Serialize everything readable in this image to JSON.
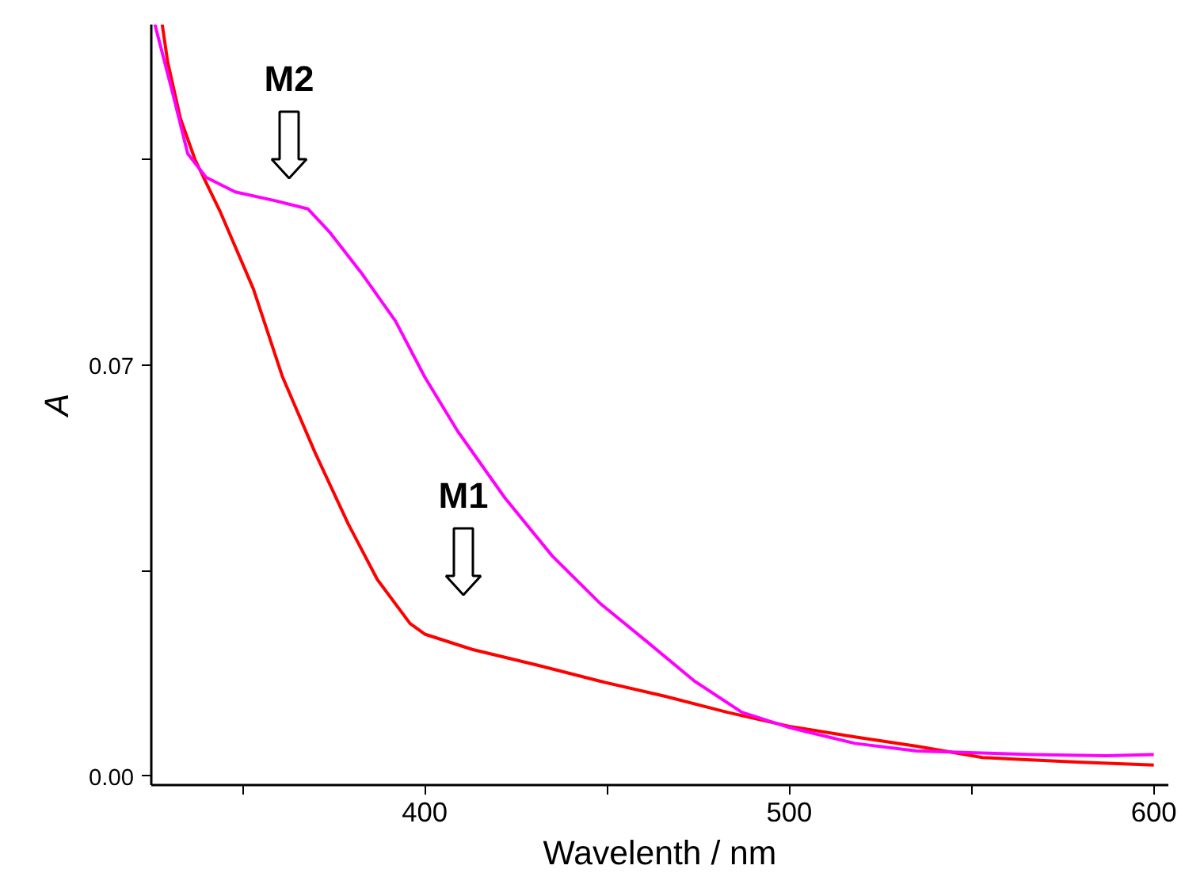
{
  "chart_data": {
    "type": "line",
    "xlabel": "Wavelenth / nm",
    "ylabel": "A",
    "xlim": [
      325,
      604
    ],
    "ylim": [
      -0.0015,
      0.128
    ],
    "xticks": [
      {
        "value": 350,
        "label": null
      },
      400,
      {
        "value": 450,
        "label": null
      },
      500,
      {
        "value": 550,
        "label": null
      },
      600
    ],
    "yticks": [
      {
        "value": 0,
        "label": "0.00"
      },
      {
        "value": 0.035,
        "label": null
      },
      0.07,
      {
        "value": 0.105,
        "label": null
      }
    ],
    "grid": false,
    "marker": "none",
    "line_style": "solid",
    "series": [
      {
        "color": "#ff0000",
        "x": [
          328,
          329.5,
          333,
          337,
          344,
          353,
          361,
          370,
          379,
          387,
          396,
          400,
          413,
          431,
          448,
          466,
          483,
          500,
          518,
          535,
          553,
          579,
          600
        ],
        "values": [
          0.128,
          0.1216,
          0.112,
          0.105,
          0.096,
          0.083,
          0.068,
          0.055,
          0.043,
          0.0335,
          0.026,
          0.0242,
          0.0216,
          0.0189,
          0.0162,
          0.0136,
          0.0109,
          0.0085,
          0.0067,
          0.0051,
          0.0032,
          0.0024,
          0.0019
        ]
      },
      {
        "color": "#ff00ff",
        "x": [
          326,
          331,
          335,
          340,
          348,
          359,
          368,
          374,
          383,
          392,
          400,
          409,
          422,
          435,
          448,
          461,
          474,
          487,
          500,
          518,
          535,
          566,
          587,
          600
        ],
        "values": [
          0.128,
          0.116,
          0.106,
          0.102,
          0.0995,
          0.098,
          0.0966,
          0.0926,
          0.0854,
          0.0775,
          0.068,
          0.0588,
          0.0474,
          0.0375,
          0.0295,
          0.0229,
          0.0162,
          0.0109,
          0.0083,
          0.0056,
          0.0043,
          0.0037,
          0.0035,
          0.0037
        ]
      }
    ],
    "annotations": [
      "M2",
      "M1"
    ]
  }
}
